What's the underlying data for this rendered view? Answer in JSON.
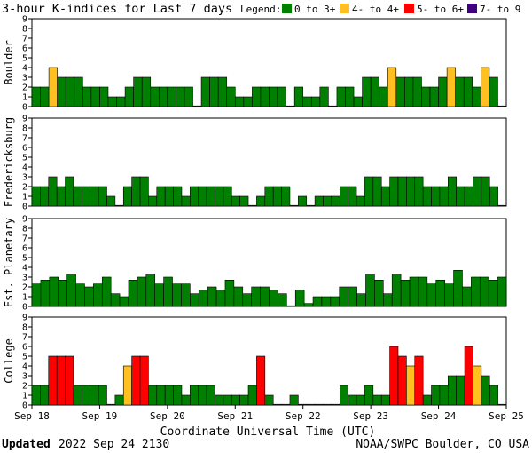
{
  "chart_data": {
    "type": "bar",
    "title": "3-hour K-indices for Last 7 days",
    "legend": {
      "label": "Legend:",
      "entries": [
        {
          "label": "0 to 3+",
          "color": "#008000"
        },
        {
          "label": "4- to 4+",
          "color": "#ffc020"
        },
        {
          "label": "5- to 6+",
          "color": "#ff0000"
        },
        {
          "label": "7- to 9",
          "color": "#400080"
        }
      ]
    },
    "xlabel": "Coordinate Universal Time (UTC)",
    "x_ticks": [
      "Sep 18",
      "Sep 19",
      "Sep 20",
      "Sep 21",
      "Sep 22",
      "Sep 23",
      "Sep 24",
      "Sep 25"
    ],
    "y_ticks": [
      "0",
      "1",
      "2",
      "3",
      "4",
      "5",
      "6",
      "7",
      "8",
      "9"
    ],
    "ylim": [
      0,
      9
    ],
    "grid": false,
    "series": [
      {
        "name": "Boulder",
        "values": [
          2,
          2,
          4,
          3,
          3,
          3,
          2,
          2,
          2,
          1,
          1,
          2,
          3,
          3,
          2,
          2,
          2,
          2,
          2,
          0,
          3,
          3,
          3,
          2,
          1,
          1,
          2,
          2,
          2,
          2,
          0,
          2,
          1,
          1,
          2,
          0,
          2,
          2,
          1,
          3,
          3,
          2,
          4,
          3,
          3,
          3,
          2,
          2,
          3,
          4,
          3,
          3,
          2,
          4,
          3,
          0
        ]
      },
      {
        "name": "Fredericksburg",
        "values": [
          2,
          2,
          3,
          2,
          3,
          2,
          2,
          2,
          2,
          1,
          0,
          2,
          3,
          3,
          1,
          2,
          2,
          2,
          1,
          2,
          2,
          2,
          2,
          2,
          1,
          1,
          0,
          1,
          2,
          2,
          2,
          0,
          1,
          0,
          1,
          1,
          1,
          2,
          2,
          1,
          3,
          3,
          2,
          3,
          3,
          3,
          3,
          2,
          2,
          2,
          3,
          2,
          2,
          3,
          3,
          2,
          0
        ]
      },
      {
        "name": "Est. Planetary",
        "values": [
          2.3,
          2.7,
          3.0,
          2.7,
          3.3,
          2.3,
          2.0,
          2.3,
          3.0,
          1.3,
          1.0,
          2.7,
          3.0,
          3.3,
          2.3,
          3.0,
          2.3,
          2.3,
          1.3,
          1.7,
          2.0,
          1.7,
          2.7,
          2.0,
          1.3,
          2.0,
          2.0,
          1.7,
          1.3,
          0.0,
          1.7,
          0.3,
          1.0,
          1.0,
          1.0,
          2.0,
          2.0,
          1.3,
          3.3,
          2.7,
          1.3,
          3.3,
          2.7,
          3.0,
          3.0,
          2.3,
          2.7,
          2.3,
          3.7,
          2.0,
          3.0,
          3.0,
          2.7,
          3.0
        ]
      },
      {
        "name": "College",
        "values": [
          2,
          2,
          5,
          5,
          5,
          2,
          2,
          2,
          2,
          0,
          1,
          4,
          5,
          5,
          2,
          2,
          2,
          2,
          1,
          2,
          2,
          2,
          1,
          1,
          1,
          1,
          2,
          5,
          1,
          0,
          0,
          1,
          0,
          0,
          0,
          0,
          0,
          2,
          1,
          1,
          2,
          1,
          1,
          6,
          5,
          4,
          5,
          1,
          2,
          2,
          3,
          3,
          6,
          4,
          3,
          2,
          0
        ]
      }
    ]
  },
  "footer": {
    "updated_label": "Updated",
    "updated_value": "2022 Sep 24 2130",
    "credit": "NOAA/SWPC Boulder, CO USA"
  }
}
